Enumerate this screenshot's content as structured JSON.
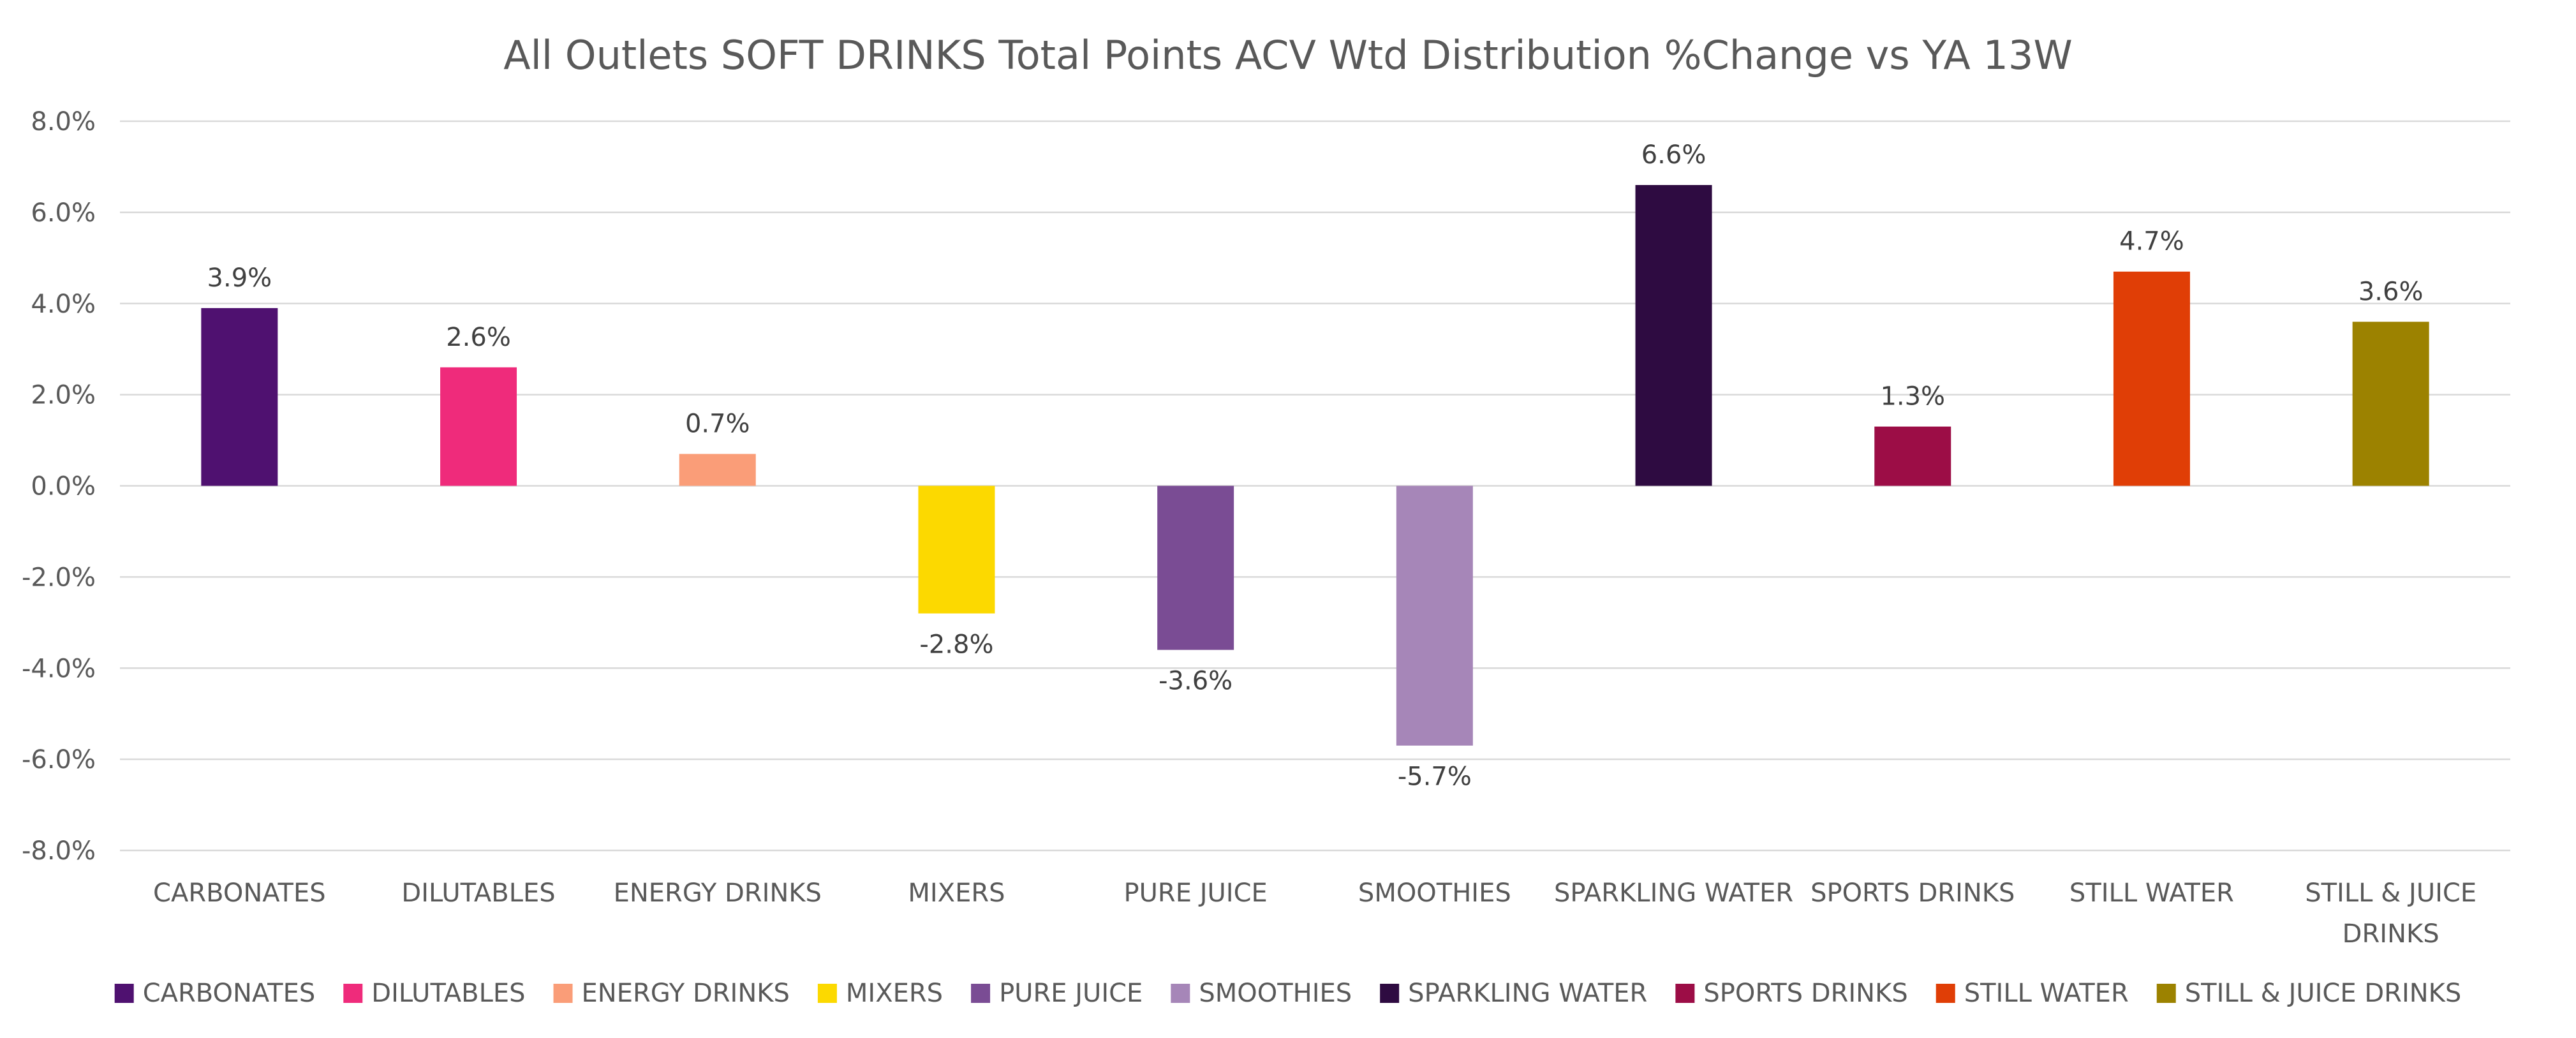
{
  "chart_data": {
    "type": "bar",
    "title": "All Outlets SOFT DRINKS Total Points ACV Wtd Distribution %Change vs YA  13W",
    "categories": [
      "CARBONATES",
      "DILUTABLES",
      "ENERGY DRINKS",
      "MIXERS",
      "PURE JUICE",
      "SMOOTHIES",
      "SPARKLING WATER",
      "SPORTS DRINKS",
      "STILL WATER",
      "STILL & JUICE DRINKS"
    ],
    "category_tick_lines": [
      [
        "CARBONATES"
      ],
      [
        "DILUTABLES"
      ],
      [
        "ENERGY DRINKS"
      ],
      [
        "MIXERS"
      ],
      [
        "PURE JUICE"
      ],
      [
        "SMOOTHIES"
      ],
      [
        "SPARKLING WATER"
      ],
      [
        "SPORTS DRINKS"
      ],
      [
        "STILL WATER"
      ],
      [
        "STILL & JUICE",
        "DRINKS"
      ]
    ],
    "values": [
      3.9,
      2.6,
      0.7,
      -2.8,
      -3.6,
      -5.7,
      6.6,
      1.3,
      4.7,
      3.6
    ],
    "data_labels": [
      "3.9%",
      "2.6%",
      "0.7%",
      "-2.8%",
      "-3.6%",
      "-5.7%",
      "6.6%",
      "1.3%",
      "4.7%",
      "3.6%"
    ],
    "colors": [
      "#4f1170",
      "#ef2b7b",
      "#fa9d78",
      "#fcd900",
      "#7a4c94",
      "#a686b8",
      "#2e0b41",
      "#9c0d46",
      "#e03e06",
      "#9c8200"
    ],
    "ylim": [
      -8.0,
      8.0
    ],
    "yticks": [
      8.0,
      6.0,
      4.0,
      2.0,
      0.0,
      -2.0,
      -4.0,
      -6.0,
      -8.0
    ],
    "ytick_labels": [
      "8.0%",
      "6.0%",
      "4.0%",
      "2.0%",
      "0.0%",
      "-2.0%",
      "-4.0%",
      "-6.0%",
      "-8.0%"
    ],
    "xlabel": "",
    "ylabel": "",
    "grid": true,
    "legend_position": "bottom",
    "legend": [
      "CARBONATES",
      "DILUTABLES",
      "ENERGY DRINKS",
      "MIXERS",
      "PURE JUICE",
      "SMOOTHIES",
      "SPARKLING WATER",
      "SPORTS DRINKS",
      "STILL WATER",
      "STILL & JUICE DRINKS"
    ]
  }
}
